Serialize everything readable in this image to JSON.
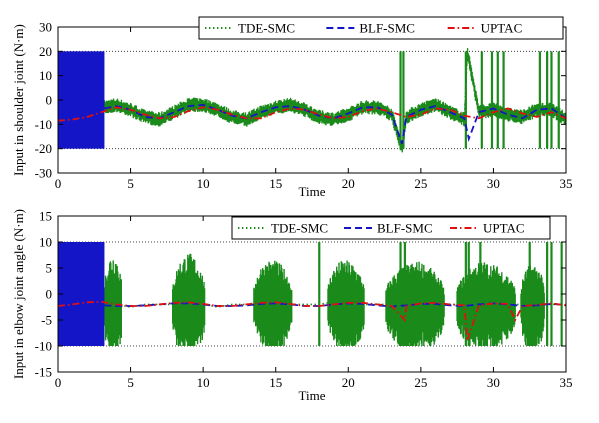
{
  "chart_data": [
    {
      "type": "line",
      "id": "shoulder",
      "title": "",
      "xlabel": "Time",
      "ylabel": "Input in shoulder joint (N·m)",
      "xlim": [
        0,
        35
      ],
      "ylim": [
        -30,
        30
      ],
      "xticks": [
        0,
        5,
        10,
        15,
        20,
        25,
        30,
        35
      ],
      "yticks": [
        -30,
        -20,
        -10,
        0,
        10,
        20,
        30
      ],
      "ref_lines": [
        20,
        -20
      ],
      "legend_position": "top-right",
      "series": [
        {
          "name": "TDE-SMC",
          "color": "#1a8a1a",
          "style": "dotted",
          "x": [
            0,
            0.5,
            1,
            1.5,
            2,
            2.5,
            3,
            3.2,
            4,
            5,
            6,
            7,
            8,
            9,
            10,
            11,
            12,
            13,
            14,
            15,
            16,
            17,
            18,
            19,
            20,
            21,
            22,
            23,
            23.7,
            24,
            25,
            26,
            27,
            28,
            28.2,
            29,
            30,
            31,
            32,
            33,
            34,
            35
          ],
          "y": [
            20,
            -20,
            20,
            -20,
            20,
            -20,
            20,
            -3,
            -2,
            -4,
            -7,
            -8,
            -5,
            -2,
            -2,
            -4,
            -7,
            -8,
            -5,
            -3,
            -2,
            -4,
            -7,
            -8,
            -6,
            -3,
            -3,
            -6,
            -20,
            -7,
            -4,
            -2,
            -5,
            -8,
            20,
            -5,
            -4,
            -6,
            -7,
            -4,
            -4,
            -8
          ],
          "noise_band": 3,
          "spike_times": [
            23.6,
            23.8,
            28.1,
            29.2,
            29.9,
            30.3,
            30.7,
            33.2,
            33.7,
            34.0,
            34.5
          ]
        },
        {
          "name": "BLF-SMC",
          "color": "#1515c8",
          "style": "dashed",
          "x": [
            0,
            0.5,
            1,
            1.5,
            2,
            2.5,
            3,
            3.2,
            4,
            5,
            6,
            7,
            8,
            9,
            10,
            11,
            12,
            13,
            14,
            15,
            16,
            17,
            18,
            19,
            20,
            21,
            22,
            23,
            23.7,
            24,
            25,
            26,
            27,
            28,
            28.3,
            29,
            30,
            31,
            32,
            33,
            34,
            35
          ],
          "y": [
            20,
            -20,
            20,
            -20,
            20,
            -20,
            20,
            -3.5,
            -2.5,
            -4,
            -7,
            -7.5,
            -5,
            -2.5,
            -2,
            -4,
            -6.5,
            -7.5,
            -5,
            -3,
            -2.5,
            -4,
            -6.5,
            -7.5,
            -5.5,
            -3,
            -3,
            -6,
            -18,
            -7,
            -4,
            -2.5,
            -5,
            -7.5,
            -16,
            -5,
            -3.5,
            -6,
            -7.5,
            -4,
            -3.5,
            -7.5
          ]
        },
        {
          "name": "UPTAC",
          "color": "#e01010",
          "style": "dashdot",
          "x": [
            0,
            1,
            2,
            3,
            4,
            5,
            6,
            7,
            8,
            9,
            10,
            11,
            12,
            13,
            14,
            15,
            16,
            17,
            18,
            19,
            20,
            21,
            22,
            23,
            24,
            25,
            26,
            27,
            28,
            29,
            30,
            31,
            32,
            33,
            34,
            35
          ],
          "y": [
            -8.5,
            -8,
            -7,
            -5,
            -3,
            -4,
            -6,
            -7.5,
            -7,
            -4.5,
            -3,
            -4,
            -6,
            -7.5,
            -7.5,
            -5,
            -3.5,
            -4,
            -6,
            -7.5,
            -7,
            -4.5,
            -3.5,
            -5,
            -7,
            -6,
            -3.5,
            -4,
            -6.5,
            -7.5,
            -5,
            -3.5,
            -5.5,
            -7,
            -5,
            -7.5
          ]
        }
      ]
    },
    {
      "type": "line",
      "id": "elbow",
      "title": "",
      "xlabel": "Time",
      "ylabel": "Input in elbow joint angle (N·m)",
      "xlim": [
        0,
        35
      ],
      "ylim": [
        -15,
        15
      ],
      "xticks": [
        0,
        5,
        10,
        15,
        20,
        25,
        30,
        35
      ],
      "yticks": [
        -15,
        -10,
        -5,
        0,
        5,
        10,
        15
      ],
      "ref_lines": [
        10,
        -10
      ],
      "legend_position": "top-right",
      "series": [
        {
          "name": "TDE-SMC",
          "color": "#1a8a1a",
          "style": "dotted",
          "x": [
            0,
            0.5,
            1,
            1.5,
            2,
            2.5,
            3,
            3.2,
            4,
            5,
            6,
            7,
            8,
            9,
            10,
            11,
            12,
            13,
            14,
            15,
            16,
            17,
            18,
            19,
            20,
            21,
            22,
            23,
            24,
            25,
            26,
            27,
            28,
            29,
            30,
            31,
            32,
            33,
            34,
            35
          ],
          "y": [
            10,
            -10,
            10,
            -10,
            10,
            -10,
            10,
            -2,
            -2,
            -2.5,
            -2,
            -2,
            -2,
            -1.5,
            -2,
            -2.5,
            -2,
            -2,
            -1.5,
            -2,
            -2,
            -2,
            -2,
            -1.5,
            -2,
            -2,
            -2,
            -2,
            -2,
            -1.5,
            -2,
            -2,
            -2,
            -1.5,
            -2,
            -2,
            -2,
            -2,
            -2,
            -2
          ],
          "bursts": [
            [
              3.2,
              4.4,
              10
            ],
            [
              7.9,
              10.1,
              9.5
            ],
            [
              13.5,
              16.1,
              8.5
            ],
            [
              18.6,
              21.1,
              8.5
            ],
            [
              22.6,
              26.6,
              8
            ],
            [
              27.5,
              31.5,
              8
            ],
            [
              31.9,
              33.5,
              8
            ]
          ],
          "spike_times": [
            18.0,
            23.6,
            23.9,
            28.1,
            28.3,
            29.1,
            32.5,
            33.7,
            34.0,
            34.7
          ]
        },
        {
          "name": "BLF-SMC",
          "color": "#1515c8",
          "style": "dashed",
          "x": [
            0,
            0.5,
            1,
            1.5,
            2,
            2.5,
            3,
            3.2,
            4,
            5,
            6,
            7,
            8,
            9,
            10,
            11,
            12,
            13,
            14,
            15,
            16,
            17,
            18,
            19,
            20,
            21,
            22,
            23,
            24,
            25,
            26,
            27,
            28,
            29,
            30,
            31,
            32,
            33,
            34,
            35
          ],
          "y": [
            10,
            -10,
            10,
            -10,
            10,
            -10,
            10,
            -2.2,
            -2.3,
            -2.3,
            -2.2,
            -2,
            -1.8,
            -1.8,
            -2,
            -2.3,
            -2.3,
            -2.2,
            -1.9,
            -1.8,
            -2,
            -2.3,
            -2.3,
            -2,
            -1.8,
            -1.9,
            -2.2,
            -2.4,
            -2.2,
            -1.9,
            -1.9,
            -2.2,
            -2.3,
            -2,
            -1.8,
            -2,
            -2.3,
            -2.2,
            -1.9,
            -2.1
          ]
        },
        {
          "name": "UPTAC",
          "color": "#e01010",
          "style": "dashdot",
          "x": [
            0,
            1,
            2,
            3,
            4,
            5,
            6,
            7,
            8,
            9,
            10,
            11,
            12,
            13,
            14,
            15,
            16,
            17,
            18,
            19,
            20,
            21,
            22,
            23,
            23.9,
            24,
            25,
            26,
            27,
            28,
            28.2,
            29,
            30,
            31,
            31.5,
            32,
            33,
            34,
            35
          ],
          "y": [
            -2.3,
            -2,
            -1.6,
            -1.5,
            -2,
            -2.3,
            -2.3,
            -2,
            -1.7,
            -1.6,
            -1.9,
            -2.3,
            -2.3,
            -2,
            -1.7,
            -1.6,
            -1.9,
            -2.3,
            -2.3,
            -2,
            -1.7,
            -1.7,
            -2,
            -2.3,
            -5,
            -2.3,
            -1.8,
            -1.7,
            -2,
            -2.2,
            -9,
            -2.2,
            -1.8,
            -1.9,
            -5,
            -2.3,
            -2.1,
            -1.8,
            -2.2
          ]
        }
      ]
    }
  ]
}
